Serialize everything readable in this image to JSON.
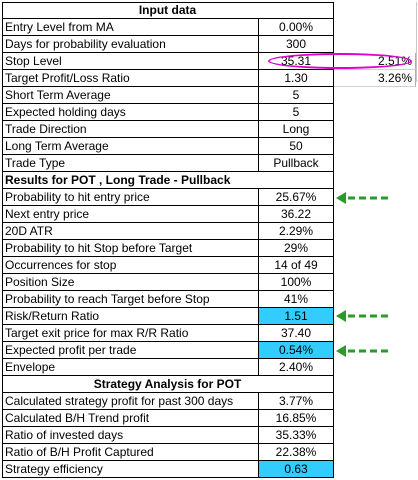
{
  "sections": {
    "input": "Input data",
    "results": "Results for POT , Long Trade - Pullback",
    "strategy": "Strategy Analysis for POT"
  },
  "rows": [
    {
      "label": "Entry Level from MA",
      "value": "0.00%"
    },
    {
      "label": "Days for probability evaluation",
      "value": "300"
    },
    {
      "label": "Stop Level",
      "value": "35.31",
      "extra": "2.51%"
    },
    {
      "label": "Target Profit/Loss Ratio",
      "value": "1.30",
      "extra": "3.26%"
    },
    {
      "label": "Short Term Average",
      "value": "5"
    },
    {
      "label": "Expected holding days",
      "value": "5"
    },
    {
      "label": "Trade Direction",
      "value": "Long"
    },
    {
      "label": "Long Term Average",
      "value": "50"
    },
    {
      "label": "Trade Type",
      "value": "Pullback"
    },
    {
      "label": "Probability to hit entry price",
      "value": "25.67%"
    },
    {
      "label": "Next entry price",
      "value": "36.22"
    },
    {
      "label": "20D ATR",
      "value": "2.29%"
    },
    {
      "label": "Probability to hit Stop before Target",
      "value": "29%"
    },
    {
      "label": "Occurrences for stop",
      "value": "14 of 49"
    },
    {
      "label": "Position Size",
      "value": "100%"
    },
    {
      "label": "Probability to reach Target before Stop",
      "value": "41%"
    },
    {
      "label": "Risk/Return Ratio",
      "value": "1.51"
    },
    {
      "label": "Target exit price for max R/R Ratio",
      "value": "37.40"
    },
    {
      "label": "Expected profit per trade",
      "value": "0.54%"
    },
    {
      "label": "Envelope",
      "value": "2.40%"
    },
    {
      "label": "Calculated strategy profit for past 300 days",
      "value": "3.77%"
    },
    {
      "label": "Calculated B/H Trend profit",
      "value": "16.85%"
    },
    {
      "label": "Ratio of invested days",
      "value": "35.33%"
    },
    {
      "label": "Ratio of B/H Profit Captured",
      "value": "22.38%"
    },
    {
      "label": "Strategy efficiency",
      "value": "0.63"
    }
  ],
  "colors": {
    "highlight": "#33ccff",
    "oval": "#e000d0",
    "arrow": "#2a9a2a"
  },
  "icons": [
    "dashed-arrow-left-icon",
    "oval-highlight"
  ]
}
